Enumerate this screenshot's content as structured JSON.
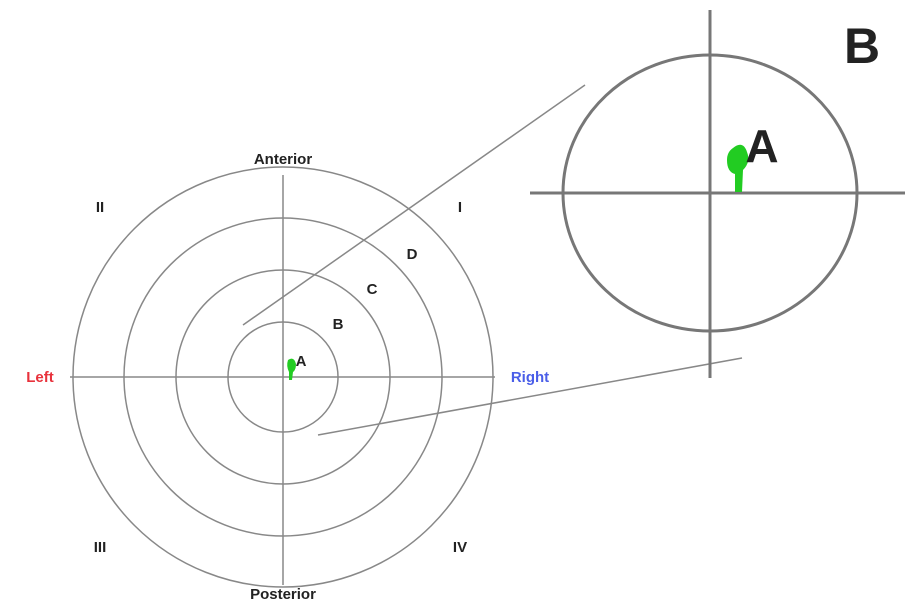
{
  "panel_label": "B",
  "main_diagram": {
    "directions": {
      "anterior": "Anterior",
      "posterior": "Posterior",
      "left": "Left",
      "right": "Right"
    },
    "quadrants": [
      "I",
      "II",
      "III",
      "IV"
    ],
    "zones": [
      "A",
      "B",
      "C",
      "D"
    ]
  },
  "inset": {
    "label": "A"
  }
}
